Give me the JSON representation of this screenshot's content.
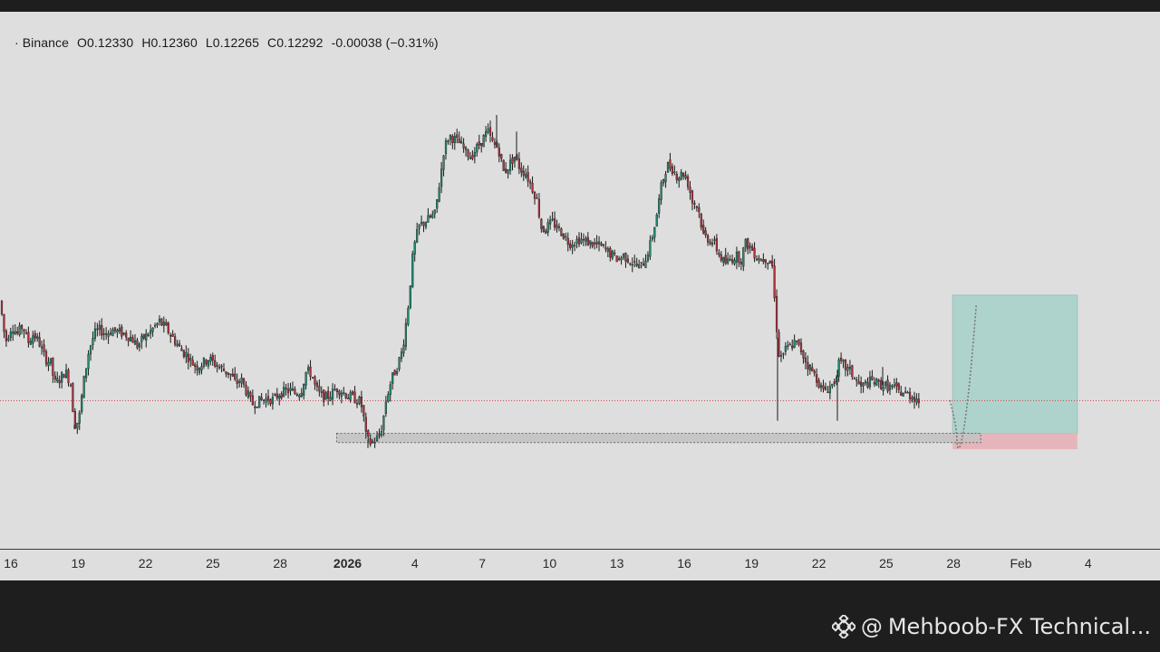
{
  "header": {
    "exchange": "· Binance",
    "open": "O0.12330",
    "high": "H0.12360",
    "low": "L0.12265",
    "close": "C0.12292",
    "change": "-0.00038 (−0.31%)"
  },
  "watermark": {
    "at": "@",
    "text": "Mehboob-FX Technical...",
    "icon": "binance-diamond-icon"
  },
  "colors": {
    "up": "#1f8a70",
    "down": "#b0323d",
    "background": "#dedede",
    "target_zone": "#aed3cc",
    "stop_zone": "#e6b5bb",
    "demand_zone": "#c2c2c2",
    "price_line": "#d04a5a"
  },
  "chart_data": {
    "type": "candlestick",
    "symbol_source": "Binance",
    "x_ticks": [
      "16",
      "19",
      "22",
      "25",
      "28",
      "2026",
      "4",
      "7",
      "10",
      "13",
      "16",
      "19",
      "22",
      "25",
      "28",
      "Feb",
      "4"
    ],
    "y_range": [
      0.105,
      0.17
    ],
    "current_price": 0.12292,
    "anchors": [
      [
        0,
        0.135
      ],
      [
        6,
        0.13
      ],
      [
        13,
        0.132
      ],
      [
        19,
        0.131
      ],
      [
        25,
        0.132
      ],
      [
        31,
        0.13
      ],
      [
        37,
        0.131
      ],
      [
        43,
        0.13
      ],
      [
        50,
        0.128
      ],
      [
        56,
        0.1275
      ],
      [
        60,
        0.125
      ],
      [
        66,
        0.1255
      ],
      [
        72,
        0.1265
      ],
      [
        78,
        0.125
      ],
      [
        82,
        0.12
      ],
      [
        87,
        0.1205
      ],
      [
        92,
        0.125
      ],
      [
        98,
        0.129
      ],
      [
        104,
        0.131
      ],
      [
        110,
        0.1315
      ],
      [
        117,
        0.131
      ],
      [
        124,
        0.1315
      ],
      [
        131,
        0.1312
      ],
      [
        138,
        0.131
      ],
      [
        145,
        0.1305
      ],
      [
        152,
        0.1295
      ],
      [
        158,
        0.1305
      ],
      [
        164,
        0.131
      ],
      [
        170,
        0.1318
      ],
      [
        176,
        0.1325
      ],
      [
        182,
        0.1318
      ],
      [
        188,
        0.131
      ],
      [
        194,
        0.13
      ],
      [
        200,
        0.129
      ],
      [
        206,
        0.1285
      ],
      [
        212,
        0.1275
      ],
      [
        218,
        0.127
      ],
      [
        224,
        0.1275
      ],
      [
        230,
        0.128
      ],
      [
        236,
        0.1275
      ],
      [
        242,
        0.127
      ],
      [
        248,
        0.1265
      ],
      [
        254,
        0.1262
      ],
      [
        260,
        0.125
      ],
      [
        266,
        0.1255
      ],
      [
        272,
        0.124
      ],
      [
        278,
        0.1225
      ],
      [
        284,
        0.1228
      ],
      [
        290,
        0.123
      ],
      [
        296,
        0.1232
      ],
      [
        302,
        0.123
      ],
      [
        308,
        0.1238
      ],
      [
        314,
        0.124
      ],
      [
        320,
        0.1242
      ],
      [
        326,
        0.1238
      ],
      [
        332,
        0.124
      ],
      [
        338,
        0.1265
      ],
      [
        344,
        0.1262
      ],
      [
        348,
        0.1245
      ],
      [
        354,
        0.1235
      ],
      [
        360,
        0.1233
      ],
      [
        366,
        0.1238
      ],
      [
        372,
        0.1244
      ],
      [
        378,
        0.124
      ],
      [
        384,
        0.1235
      ],
      [
        390,
        0.1232
      ],
      [
        396,
        0.123
      ],
      [
        400,
        0.122
      ],
      [
        404,
        0.1185
      ],
      [
        408,
        0.1178
      ],
      [
        412,
        0.118
      ],
      [
        418,
        0.1185
      ],
      [
        422,
        0.12
      ],
      [
        426,
        0.123
      ],
      [
        432,
        0.1255
      ],
      [
        438,
        0.127
      ],
      [
        444,
        0.129
      ],
      [
        450,
        0.134
      ],
      [
        456,
        0.141
      ],
      [
        462,
        0.144
      ],
      [
        468,
        0.1445
      ],
      [
        474,
        0.145
      ],
      [
        480,
        0.1455
      ],
      [
        486,
        0.15
      ],
      [
        490,
        0.1535
      ],
      [
        496,
        0.155
      ],
      [
        502,
        0.1545
      ],
      [
        508,
        0.154
      ],
      [
        514,
        0.153
      ],
      [
        520,
        0.1525
      ],
      [
        526,
        0.1535
      ],
      [
        532,
        0.1545
      ],
      [
        538,
        0.1555
      ],
      [
        544,
        0.154
      ],
      [
        550,
        0.1535
      ],
      [
        556,
        0.1505
      ],
      [
        562,
        0.1515
      ],
      [
        568,
        0.1525
      ],
      [
        574,
        0.151
      ],
      [
        580,
        0.1505
      ],
      [
        586,
        0.149
      ],
      [
        592,
        0.1475
      ],
      [
        598,
        0.1435
      ],
      [
        604,
        0.144
      ],
      [
        610,
        0.1445
      ],
      [
        616,
        0.1438
      ],
      [
        622,
        0.143
      ],
      [
        628,
        0.142
      ],
      [
        634,
        0.1422
      ],
      [
        640,
        0.1425
      ],
      [
        646,
        0.1422
      ],
      [
        652,
        0.142
      ],
      [
        658,
        0.1418
      ],
      [
        664,
        0.1415
      ],
      [
        670,
        0.141
      ],
      [
        676,
        0.1405
      ],
      [
        682,
        0.14
      ],
      [
        688,
        0.1405
      ],
      [
        694,
        0.14
      ],
      [
        700,
        0.1395
      ],
      [
        706,
        0.139
      ],
      [
        712,
        0.14
      ],
      [
        718,
        0.142
      ],
      [
        724,
        0.145
      ],
      [
        730,
        0.149
      ],
      [
        736,
        0.1515
      ],
      [
        742,
        0.151
      ],
      [
        748,
        0.15
      ],
      [
        754,
        0.1505
      ],
      [
        760,
        0.149
      ],
      [
        764,
        0.147
      ],
      [
        770,
        0.1465
      ],
      [
        776,
        0.143
      ],
      [
        782,
        0.1425
      ],
      [
        788,
        0.142
      ],
      [
        794,
        0.1405
      ],
      [
        800,
        0.1395
      ],
      [
        806,
        0.14
      ],
      [
        812,
        0.1405
      ],
      [
        818,
        0.14
      ],
      [
        822,
        0.142
      ],
      [
        828,
        0.1415
      ],
      [
        834,
        0.1405
      ],
      [
        840,
        0.14
      ],
      [
        846,
        0.1402
      ],
      [
        852,
        0.1395
      ],
      [
        856,
        0.133
      ],
      [
        860,
        0.128
      ],
      [
        866,
        0.129
      ],
      [
        872,
        0.1295
      ],
      [
        878,
        0.13
      ],
      [
        884,
        0.129
      ],
      [
        890,
        0.1275
      ],
      [
        896,
        0.1265
      ],
      [
        902,
        0.1255
      ],
      [
        908,
        0.124
      ],
      [
        914,
        0.1245
      ],
      [
        920,
        0.125
      ],
      [
        926,
        0.1275
      ],
      [
        932,
        0.127
      ],
      [
        938,
        0.1265
      ],
      [
        944,
        0.1255
      ],
      [
        950,
        0.1245
      ],
      [
        956,
        0.125
      ],
      [
        962,
        0.1253
      ],
      [
        968,
        0.125
      ],
      [
        974,
        0.1248
      ],
      [
        980,
        0.1246
      ],
      [
        986,
        0.1245
      ],
      [
        992,
        0.124
      ],
      [
        998,
        0.1238
      ],
      [
        1004,
        0.1236
      ],
      [
        1010,
        0.1233
      ],
      [
        1014,
        0.1229
      ]
    ],
    "demand_zone": {
      "from": "Jan 1",
      "to": "Jan 28",
      "top": 0.11897,
      "bottom": 0.11785
    },
    "long_position": {
      "entry": 0.11897,
      "target": 0.1357,
      "stop": 0.11705
    },
    "projection": [
      [
        0,
        0.123
      ],
      [
        0.25,
        0.119
      ],
      [
        0.5,
        0.118
      ],
      [
        1,
        0.1345
      ]
    ]
  }
}
